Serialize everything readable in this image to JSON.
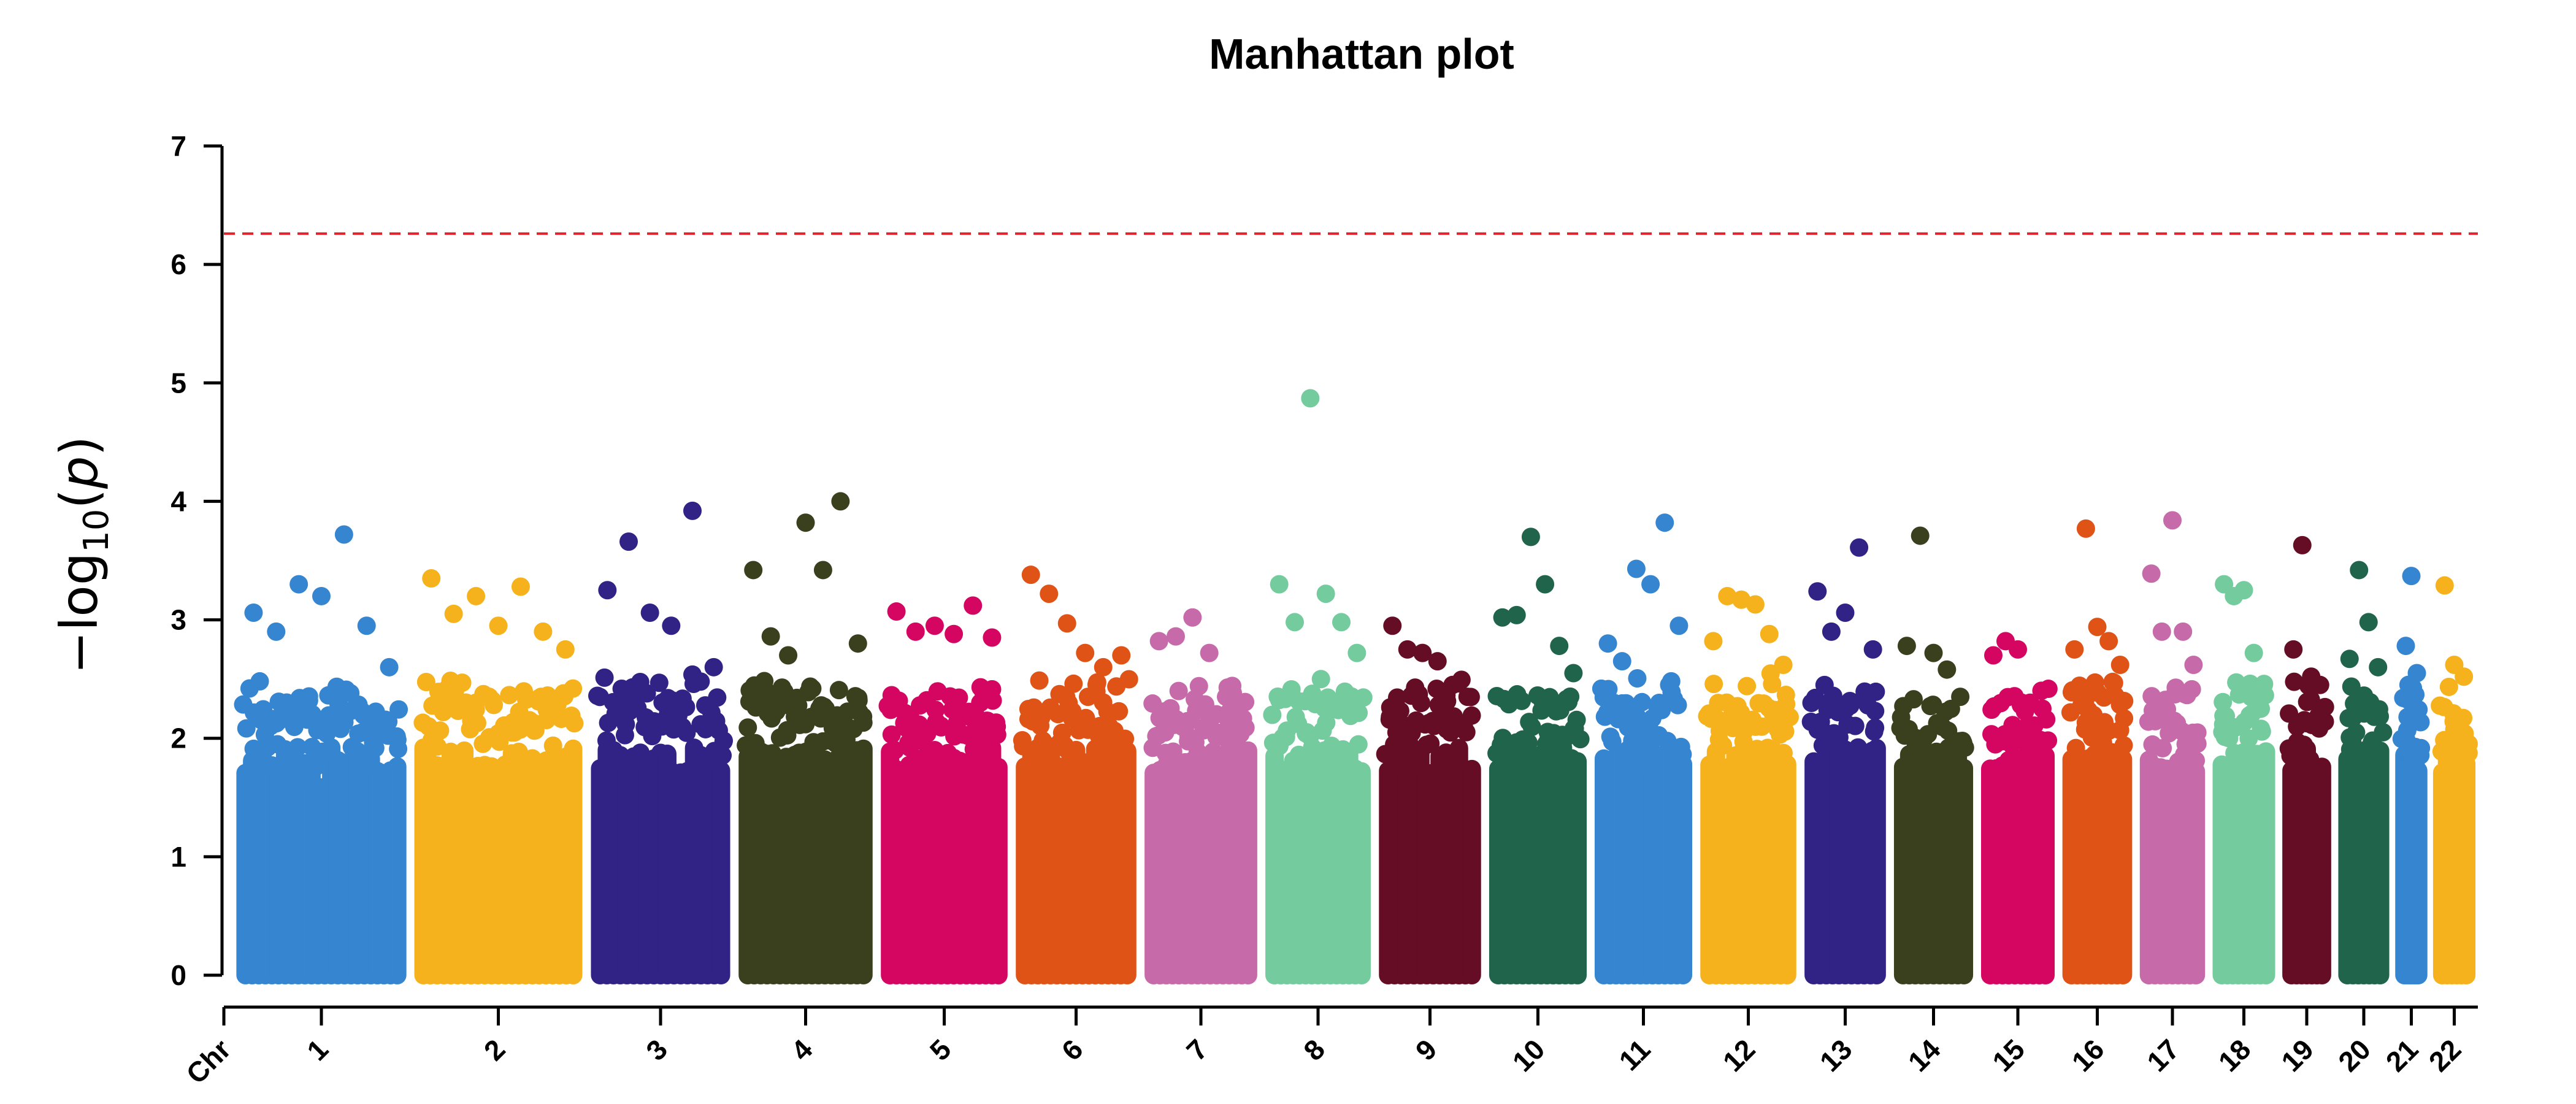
{
  "chart_data": {
    "type": "scatter",
    "title": "Manhattan plot",
    "xlabel": "Chr",
    "ylabel": "-log10(p)",
    "ylim": [
      0,
      7
    ],
    "yticks": [
      "0",
      "1",
      "2",
      "3",
      "4",
      "5",
      "6",
      "7"
    ],
    "threshold": 6.26,
    "chromosomes": [
      {
        "name": "1",
        "color": "#3585d0",
        "peaks": [
          3.06,
          2.9,
          3.3,
          3.2,
          3.72,
          2.95,
          2.6
        ]
      },
      {
        "name": "2",
        "color": "#f5b21c",
        "peaks": [
          3.35,
          3.05,
          3.2,
          2.95,
          3.28,
          2.9,
          2.75
        ]
      },
      {
        "name": "3",
        "color": "#312285",
        "peaks": [
          3.25,
          3.66,
          3.06,
          2.95,
          3.92,
          2.6
        ]
      },
      {
        "name": "4",
        "color": "#3a401e",
        "peaks": [
          3.42,
          2.86,
          2.7,
          3.82,
          3.42,
          4.0,
          2.8
        ]
      },
      {
        "name": "5",
        "color": "#d40662",
        "peaks": [
          3.07,
          2.9,
          2.95,
          2.88,
          3.12,
          2.85
        ]
      },
      {
        "name": "6",
        "color": "#e05317",
        "peaks": [
          3.38,
          3.22,
          2.97,
          2.72,
          2.6,
          2.7
        ]
      },
      {
        "name": "7",
        "color": "#c76aa9",
        "peaks": [
          2.82,
          2.86,
          3.02,
          2.72,
          2.35,
          2.3
        ]
      },
      {
        "name": "8",
        "color": "#74cb9d",
        "peaks": [
          3.3,
          2.98,
          4.87,
          3.22,
          2.98,
          2.72
        ]
      },
      {
        "name": "9",
        "color": "#650d24",
        "peaks": [
          2.95,
          2.75,
          2.72,
          2.65,
          2.45,
          2.35
        ]
      },
      {
        "name": "10",
        "color": "#20644b",
        "peaks": [
          3.02,
          3.04,
          3.7,
          3.3,
          2.78,
          2.55
        ]
      },
      {
        "name": "11",
        "color": "#3585d0",
        "peaks": [
          2.8,
          2.65,
          3.43,
          3.3,
          3.82,
          2.95
        ]
      },
      {
        "name": "12",
        "color": "#f5b21c",
        "peaks": [
          2.82,
          3.2,
          3.17,
          3.13,
          2.88,
          2.62
        ]
      },
      {
        "name": "13",
        "color": "#312285",
        "peaks": [
          3.24,
          2.9,
          3.06,
          3.61,
          2.75
        ]
      },
      {
        "name": "14",
        "color": "#3a401e",
        "peaks": [
          2.78,
          3.71,
          2.72,
          2.58,
          2.35
        ]
      },
      {
        "name": "15",
        "color": "#d40662",
        "peaks": [
          2.7,
          2.82,
          2.75,
          2.3,
          2.25
        ]
      },
      {
        "name": "16",
        "color": "#e05317",
        "peaks": [
          2.75,
          3.77,
          2.94,
          2.82,
          2.62
        ]
      },
      {
        "name": "17",
        "color": "#c76aa9",
        "peaks": [
          3.39,
          2.9,
          3.84,
          2.9,
          2.62
        ]
      },
      {
        "name": "18",
        "color": "#74cb9d",
        "peaks": [
          3.3,
          3.2,
          3.25,
          2.72,
          2.45
        ]
      },
      {
        "name": "19",
        "color": "#650d24",
        "peaks": [
          2.75,
          3.63,
          2.52,
          2.45
        ]
      },
      {
        "name": "20",
        "color": "#20644b",
        "peaks": [
          2.67,
          3.42,
          2.98,
          2.6
        ]
      },
      {
        "name": "21",
        "color": "#3585d0",
        "peaks": [
          2.78,
          3.37,
          2.55
        ]
      },
      {
        "name": "22",
        "color": "#f5b21c",
        "peaks": [
          3.29,
          2.62,
          2.52
        ]
      }
    ]
  }
}
